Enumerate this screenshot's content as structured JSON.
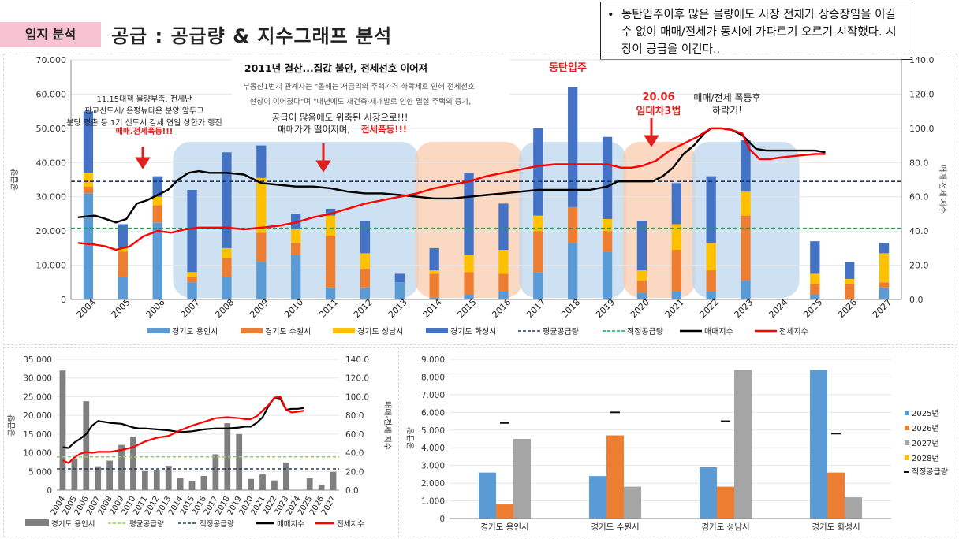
{
  "header": {
    "tag": "입지 분석",
    "title": "공급 : 공급량 & 지수그래프 분석"
  },
  "note": {
    "bullet": "•",
    "text": "동탄입주이후 많은 물량에도 시장 전체가 상승장임을 이길 수 없이 매매/전세가 동시에 가파르기 오르기 시작했다. 시장이 공급을 이긴다.."
  },
  "colors": {
    "yongin": "#5b9bd5",
    "suwon": "#ed7d31",
    "seongnam": "#ffc000",
    "hwaseong": "#4472c4",
    "avg_line": "#1f3864",
    "proper_line": "#00b050",
    "sale_index": "#000000",
    "jeonse_index": "#ff0000",
    "blue_zone": "#bdd7ee",
    "orange_zone": "#f8cbad",
    "annotation_red": "#e0201e",
    "gray_bar": "#7f7f7f",
    "lime_line": "#92d050"
  },
  "chart_data": [
    {
      "type": "bar",
      "stacked": true,
      "categories": [
        "2004",
        "2005",
        "2006",
        "2007",
        "2008",
        "2009",
        "2010",
        "2011",
        "2012",
        "2013",
        "2014",
        "2015",
        "2016",
        "2017",
        "2018",
        "2019",
        "2020",
        "2021",
        "2022",
        "2023",
        "2024",
        "2025",
        "2026",
        "2027"
      ],
      "series": [
        {
          "name": "경기도 용인시",
          "values": [
            31000,
            6500,
            22500,
            5000,
            6500,
            11000,
            13000,
            3500,
            3500,
            5000,
            500,
            1500,
            2500,
            8000,
            16500,
            14000,
            2000,
            2500,
            2500,
            5500,
            0,
            1500,
            0,
            3500
          ]
        },
        {
          "name": "경기도 수원시",
          "values": [
            2000,
            7500,
            5000,
            1500,
            5500,
            8500,
            3500,
            15000,
            5500,
            0,
            7000,
            6500,
            5000,
            12000,
            10500,
            6000,
            3500,
            12000,
            6000,
            19000,
            0,
            3000,
            4500,
            1500
          ]
        },
        {
          "name": "경기도 성남시",
          "values": [
            4000,
            1000,
            2500,
            1500,
            3000,
            16000,
            4000,
            6000,
            4500,
            0,
            1000,
            5000,
            7000,
            4500,
            0,
            3500,
            3000,
            7500,
            8000,
            7000,
            0,
            3000,
            1500,
            8500
          ]
        },
        {
          "name": "경기도 화성시",
          "values": [
            18000,
            7000,
            6000,
            24000,
            28000,
            9500,
            4500,
            2000,
            9500,
            2500,
            6500,
            24000,
            13500,
            25500,
            35000,
            24000,
            14500,
            12000,
            19500,
            15000,
            0,
            9500,
            5000,
            3000
          ]
        }
      ],
      "lines": [
        {
          "name": "평균공급량",
          "style": "dash",
          "value": 34500
        },
        {
          "name": "적정공급량",
          "style": "dash",
          "value": 20800
        }
      ],
      "index_series": [
        {
          "name": "매매지수",
          "x": [
            2003.7,
            2004.2,
            2004.5,
            2004.8,
            2005.1,
            2005.4,
            2005.7,
            2006.0,
            2006.3,
            2006.6,
            2006.9,
            2007.2,
            2007.5,
            2008.0,
            2008.5,
            2009.0,
            2009.5,
            2010.0,
            2010.5,
            2011.0,
            2011.5,
            2012.0,
            2012.5,
            2013.0,
            2013.5,
            2014.0,
            2014.5,
            2015.0,
            2015.5,
            2016.0,
            2016.5,
            2017.0,
            2017.5,
            2018.0,
            2018.5,
            2019.0,
            2019.3,
            2019.6,
            2020.0,
            2020.3,
            2020.6,
            2020.9,
            2021.2,
            2021.5,
            2021.8,
            2022.0,
            2022.3,
            2022.6,
            2022.9,
            2023.1,
            2023.3,
            2023.6,
            2024.0,
            2024.5,
            2025.0,
            2025.3
          ],
          "y": [
            48,
            49,
            47,
            45,
            47,
            56,
            58,
            61,
            64,
            70,
            74,
            75,
            74,
            74,
            73,
            68,
            67,
            66,
            66,
            65,
            63,
            62,
            62,
            61,
            60,
            59,
            59,
            60,
            61,
            62,
            63,
            64,
            64,
            64,
            64,
            66,
            69,
            69,
            69,
            69,
            72,
            77,
            85,
            90,
            97,
            100,
            100,
            99,
            96,
            92,
            88,
            87,
            87,
            87,
            87,
            86
          ]
        },
        {
          "name": "전세지수",
          "x": [
            2003.7,
            2004.2,
            2004.5,
            2004.8,
            2005.2,
            2005.6,
            2006.0,
            2006.4,
            2006.8,
            2007.2,
            2007.6,
            2008.0,
            2008.5,
            2009.0,
            2009.5,
            2010.0,
            2010.5,
            2011.0,
            2011.5,
            2012.0,
            2012.5,
            2013.0,
            2013.5,
            2014.0,
            2014.5,
            2015.0,
            2015.5,
            2016.0,
            2016.5,
            2017.0,
            2017.5,
            2018.0,
            2018.5,
            2019.0,
            2019.4,
            2019.7,
            2020.0,
            2020.4,
            2020.8,
            2021.2,
            2021.6,
            2022.0,
            2022.3,
            2022.6,
            2022.9,
            2023.1,
            2023.4,
            2023.7,
            2024.0,
            2024.5,
            2025.0,
            2025.3
          ],
          "y": [
            33,
            32,
            31,
            29,
            31,
            37,
            40,
            39,
            41,
            42,
            42,
            42,
            41,
            42,
            43,
            45,
            48,
            50,
            53,
            56,
            58,
            60,
            62,
            65,
            67,
            69,
            72,
            74,
            76,
            78,
            79,
            79,
            79,
            79,
            77,
            77,
            78,
            81,
            87,
            91,
            95,
            100,
            100,
            99,
            97,
            88,
            82,
            82,
            83,
            84,
            85,
            85
          ]
        }
      ],
      "ylim": [
        0,
        70000
      ],
      "y2lim": [
        0,
        140
      ],
      "yticks": [
        "0",
        "10.000",
        "20.000",
        "30.000",
        "40.000",
        "50.000",
        "60.000",
        "70.000"
      ],
      "y2ticks": [
        "0.0",
        "20.0",
        "40.0",
        "60.0",
        "80.0",
        "100.0",
        "120.0",
        "140.0"
      ],
      "ylabel": "공급량",
      "y2label": "매매-전세 지수",
      "legend_position": "bottom",
      "annotations": {
        "inner_title": "2011년 결산...집값 불안, 전세선호 이어져",
        "inner_line1": "부동산1번지 관계자는 \"올해는 저금리와 주택가격 하락세로 인해 전세선호",
        "inner_line2": "현상이 이어졌다\"며 \"내년에도 재건축·재개발로 인한 멸실 주택의 증가,",
        "left_line1": "11.15대책 물량부족. 전세난",
        "left_line2": "판교신도시/ 은평뉴타운 분양 앞두고",
        "left_line3": "분당.평촌 등 1기 신도시 강세 연일 상한가 행진",
        "left_red": "매매.전세폭등!!!",
        "mid_line1": "공급이 많음에도 위축된 시장으로!!!",
        "mid_line2": "매매가가 떨어지며,",
        "mid_red": "전세폭등!!!",
        "dongtan": "동탄입주",
        "law_line1": "20.06",
        "law_line2": "임대차3법",
        "right_line1": "매매/전세 폭등후",
        "right_line2": "하락기!"
      }
    },
    {
      "type": "bar",
      "categories": [
        "2004",
        "2005",
        "2006",
        "2007",
        "2008",
        "2009",
        "2010",
        "2011",
        "2012",
        "2013",
        "2014",
        "2015",
        "2016",
        "2017",
        "2018",
        "2019",
        "2020",
        "2021",
        "2022",
        "2023",
        "2024",
        "2025",
        "2026",
        "2027"
      ],
      "series": [
        {
          "name": "경기도 용인시",
          "values": [
            32000,
            8500,
            23800,
            6400,
            7900,
            12100,
            14300,
            5100,
            5400,
            6500,
            3200,
            2400,
            3800,
            9600,
            17900,
            15000,
            3000,
            4200,
            2600,
            7400,
            0,
            3200,
            1500,
            4900
          ]
        }
      ],
      "lines": [
        {
          "name": "평균공급량",
          "style": "dash",
          "value": 8900
        },
        {
          "name": "적정공급량",
          "style": "dash",
          "value": 5700
        }
      ],
      "index_series": [
        {
          "name": "매매지수",
          "x": [
            2004,
            2004.5,
            2005,
            2005.5,
            2006,
            2006.5,
            2007,
            2007.5,
            2008,
            2009,
            2009.5,
            2010,
            2010.5,
            2011,
            2012,
            2013,
            2014,
            2015,
            2016,
            2017,
            2018,
            2019,
            2019.5,
            2020,
            2020.5,
            2021,
            2021.5,
            2022,
            2022.5,
            2023,
            2023.5,
            2024,
            2024.5
          ],
          "y": [
            46,
            45,
            51,
            55,
            60,
            69,
            74,
            73,
            72,
            71,
            69,
            67,
            66,
            66,
            65,
            64,
            62,
            63,
            65,
            66,
            66,
            67,
            68,
            68,
            72,
            78,
            90,
            99,
            98,
            86,
            87,
            87,
            88
          ]
        },
        {
          "name": "전세지수",
          "x": [
            2004,
            2004.5,
            2005,
            2005.5,
            2006,
            2006.5,
            2007,
            2007.5,
            2008,
            2009,
            2010,
            2010.5,
            2011,
            2012,
            2013,
            2014,
            2015,
            2016,
            2017,
            2018,
            2019,
            2019.5,
            2020,
            2020.5,
            2021,
            2021.5,
            2022,
            2022.5,
            2023,
            2023.5,
            2024,
            2024.5
          ],
          "y": [
            32,
            29,
            35,
            39,
            41,
            40,
            41,
            41,
            41,
            43,
            46,
            49,
            52,
            56,
            58,
            64,
            69,
            73,
            77,
            78,
            77,
            76,
            76,
            79,
            85,
            91,
            99,
            100,
            86,
            83,
            84,
            85
          ]
        }
      ],
      "ylim": [
        0,
        35000
      ],
      "y2lim": [
        0,
        140
      ],
      "yticks": [
        "0",
        "5.000",
        "10.000",
        "15.000",
        "20.000",
        "25.000",
        "30.000",
        "35.000"
      ],
      "y2ticks": [
        "0.0",
        "20.0",
        "40.0",
        "60.0",
        "80.0",
        "100.0",
        "120.0",
        "140.0"
      ],
      "ylabel": "공급량",
      "y2label": "매매-전세 지수",
      "legend": [
        "경기도 용인시",
        "평균공급량",
        "적정공급량",
        "매매지수",
        "전세지수"
      ],
      "legend_position": "bottom"
    },
    {
      "type": "bar",
      "categories": [
        "경기도 용인시",
        "경기도 수원시",
        "경기도 성남시",
        "경기도 화성시"
      ],
      "series": [
        {
          "name": "2025년",
          "values": [
            2600,
            2400,
            2900,
            8400
          ]
        },
        {
          "name": "2026년",
          "values": [
            800,
            4700,
            1800,
            2600
          ]
        },
        {
          "name": "2027년",
          "values": [
            4500,
            1800,
            8400,
            1200
          ]
        },
        {
          "name": "2028년",
          "values": [
            0,
            0,
            0,
            0
          ]
        }
      ],
      "markers": {
        "name": "적정공급량",
        "values": [
          5400,
          6000,
          5500,
          4800
        ]
      },
      "ylim": [
        0,
        9000
      ],
      "yticks": [
        "0",
        "1.000",
        "2.000",
        "3.000",
        "4.000",
        "5.000",
        "6.000",
        "7.000",
        "8.000",
        "9.000"
      ],
      "ylabel": "공급량",
      "legend_position": "right"
    }
  ]
}
